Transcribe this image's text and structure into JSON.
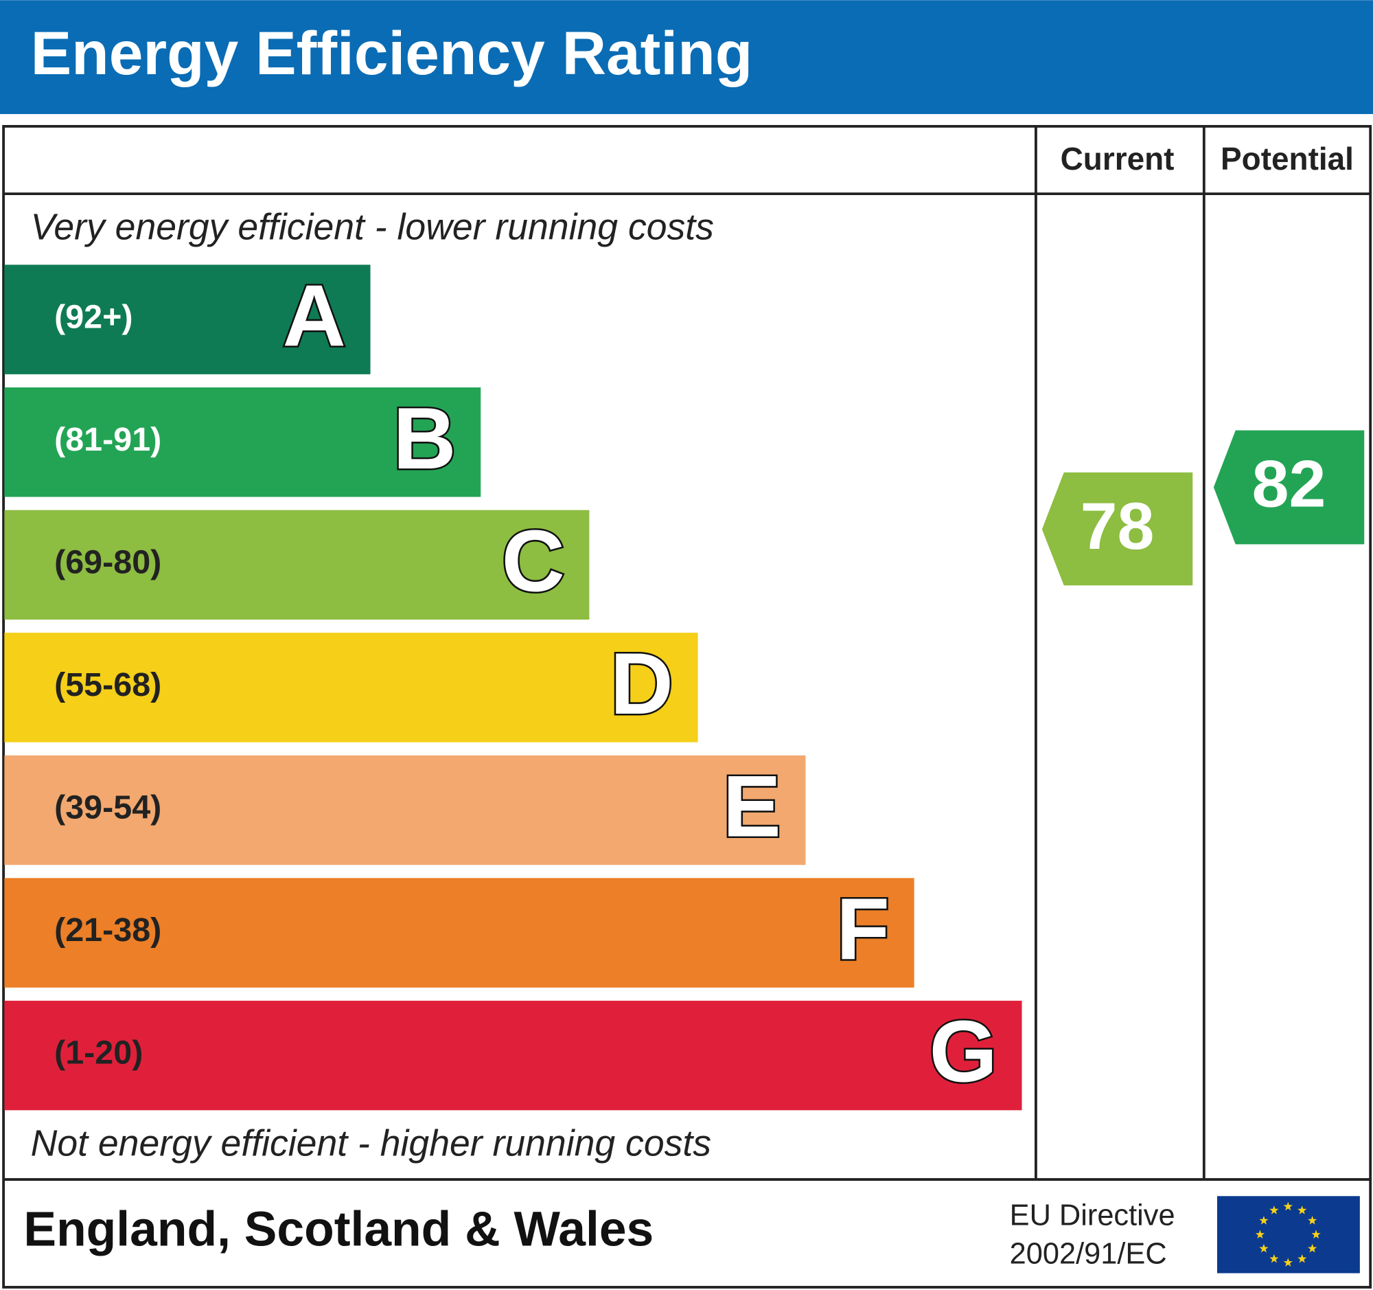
{
  "header": {
    "title": "Energy Efficiency Rating"
  },
  "columns": {
    "current": "Current",
    "potential": "Potential"
  },
  "top_note": "Very energy efficient - lower running costs",
  "bands": [
    {
      "range": "(92+)",
      "letter": "A",
      "color": "#0f7b55",
      "text_color": "#ffffff"
    },
    {
      "range": "(81-91)",
      "letter": "B",
      "color": "#23a455",
      "text_color": "#ffffff"
    },
    {
      "range": "(69-80)",
      "letter": "C",
      "color": "#8dbd41",
      "text_color": "#222222"
    },
    {
      "range": "(55-68)",
      "letter": "D",
      "color": "#f5cf18",
      "text_color": "#222222"
    },
    {
      "range": "(39-54)",
      "letter": "E",
      "color": "#f2a86e",
      "text_color": "#222222"
    },
    {
      "range": "(21-38)",
      "letter": "F",
      "color": "#ec7f27",
      "text_color": "#222222"
    },
    {
      "range": "(1-20)",
      "letter": "G",
      "color": "#e0203a",
      "text_color": "#222222"
    }
  ],
  "bottom_note": "Not energy efficient - higher running costs",
  "current": {
    "value": 78,
    "color": "#8dbd41"
  },
  "potential": {
    "value": 82,
    "color": "#23a455"
  },
  "footer": {
    "region": "England, Scotland & Wales",
    "directive": [
      "EU Directive",
      "2002/91/EC"
    ]
  }
}
